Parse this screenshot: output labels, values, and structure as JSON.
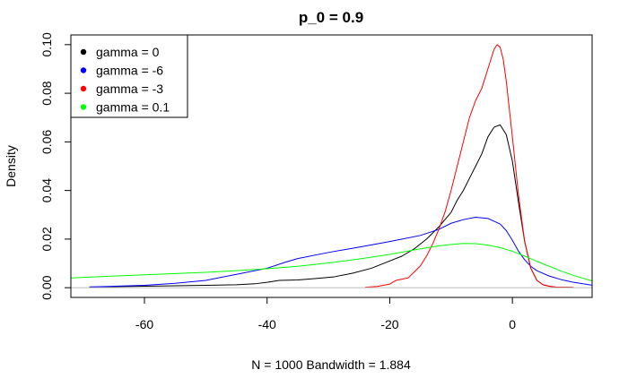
{
  "chart_data": {
    "type": "line",
    "title": "p_0 = 0.9",
    "xlabel": "N = 1000   Bandwidth = 1.884",
    "ylabel": "Density",
    "xlim": [
      -72,
      13
    ],
    "ylim": [
      -0.004,
      0.104
    ],
    "x_ticks": [
      -60,
      -40,
      -20,
      0
    ],
    "x_tick_labels": [
      "-60",
      "-40",
      "-20",
      "0"
    ],
    "y_ticks": [
      0.0,
      0.02,
      0.04,
      0.06,
      0.08,
      0.1
    ],
    "y_tick_labels": [
      "0.00",
      "0.02",
      "0.04",
      "0.06",
      "0.08",
      "0.10"
    ],
    "legend_position": "top-left",
    "series": [
      {
        "name": "gamma = 0",
        "color": "#000000",
        "x": [
          -69,
          -60,
          -50,
          -45,
          -42,
          -40,
          -38,
          -35,
          -32,
          -29,
          -26,
          -23,
          -20,
          -18,
          -16,
          -14,
          -12,
          -10,
          -9,
          -8,
          -7,
          -6,
          -5,
          -4,
          -3,
          -2,
          -1,
          0,
          1,
          2,
          3,
          4,
          5,
          6,
          7,
          8,
          10
        ],
        "y": [
          0.0003,
          0.0006,
          0.001,
          0.0012,
          0.0016,
          0.0022,
          0.003,
          0.0032,
          0.0038,
          0.0045,
          0.006,
          0.008,
          0.011,
          0.013,
          0.016,
          0.02,
          0.025,
          0.031,
          0.036,
          0.04,
          0.045,
          0.05,
          0.055,
          0.062,
          0.066,
          0.067,
          0.063,
          0.052,
          0.035,
          0.019,
          0.008,
          0.003,
          0.0012,
          0.0006,
          0.0003,
          0.0002,
          0.0001
        ]
      },
      {
        "name": "gamma = -6",
        "color": "#0000ff",
        "x": [
          -69,
          -60,
          -55,
          -50,
          -45,
          -40,
          -37,
          -35,
          -30,
          -25,
          -20,
          -15,
          -12,
          -10,
          -8,
          -6,
          -4,
          -2,
          -1,
          0,
          1,
          2,
          3,
          4,
          6,
          8,
          10,
          13
        ],
        "y": [
          0.0003,
          0.001,
          0.0018,
          0.003,
          0.0055,
          0.008,
          0.0105,
          0.012,
          0.0145,
          0.0167,
          0.019,
          0.0215,
          0.024,
          0.0265,
          0.028,
          0.029,
          0.0285,
          0.0262,
          0.0235,
          0.0195,
          0.015,
          0.0115,
          0.0088,
          0.007,
          0.0048,
          0.0033,
          0.0022,
          0.001
        ]
      },
      {
        "name": "gamma = -3",
        "color": "#ff0000",
        "x": [
          -24,
          -22,
          -20,
          -19,
          -18,
          -17,
          -16,
          -15,
          -14,
          -13,
          -12,
          -11,
          -10,
          -9,
          -8,
          -7,
          -6,
          -5,
          -4,
          -3,
          -2.5,
          -2,
          -1.5,
          -1,
          0,
          1,
          2,
          3,
          4,
          5,
          6,
          7,
          8,
          10
        ],
        "y": [
          0.0002,
          0.0005,
          0.0015,
          0.003,
          0.0035,
          0.004,
          0.0065,
          0.009,
          0.013,
          0.018,
          0.024,
          0.031,
          0.04,
          0.05,
          0.06,
          0.07,
          0.077,
          0.082,
          0.09,
          0.098,
          0.1,
          0.099,
          0.094,
          0.085,
          0.062,
          0.038,
          0.019,
          0.008,
          0.003,
          0.0012,
          0.0006,
          0.0003,
          0.0002,
          0.0001
        ]
      },
      {
        "name": "gamma = 0.1",
        "color": "#00ff00",
        "x": [
          -72,
          -65,
          -60,
          -55,
          -50,
          -45,
          -40,
          -35,
          -30,
          -25,
          -20,
          -15,
          -12,
          -10,
          -8,
          -6,
          -4,
          -2,
          0,
          2,
          4,
          6,
          8,
          10,
          13
        ],
        "y": [
          0.004,
          0.0048,
          0.0053,
          0.0058,
          0.0063,
          0.007,
          0.0078,
          0.0088,
          0.0102,
          0.0118,
          0.0137,
          0.016,
          0.0172,
          0.0178,
          0.0182,
          0.0181,
          0.0175,
          0.0165,
          0.015,
          0.013,
          0.0108,
          0.0088,
          0.0068,
          0.005,
          0.0028
        ]
      }
    ]
  }
}
